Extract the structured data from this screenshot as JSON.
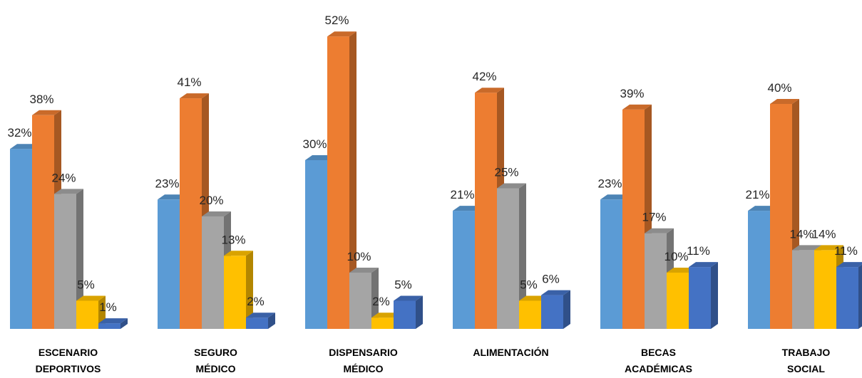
{
  "chart_data": {
    "type": "bar",
    "title": "",
    "xlabel": "",
    "ylabel": "",
    "ylim": [
      0,
      52
    ],
    "grid": false,
    "legend": "none",
    "value_format": "percent",
    "categories": [
      [
        "ESCENARIO",
        "DEPORTIVOS"
      ],
      [
        "SEGURO",
        "MÉDICO"
      ],
      [
        "DISPENSARIO",
        "MÉDICO"
      ],
      [
        "ALIMENTACIÓN"
      ],
      [
        "BECAS",
        "ACADÉMICAS"
      ],
      [
        "TRABAJO",
        "SOCIAL"
      ]
    ],
    "series": [
      {
        "color": "#5B9BD5",
        "values": [
          32,
          23,
          30,
          21,
          23,
          21
        ]
      },
      {
        "color": "#ED7D31",
        "values": [
          38,
          41,
          52,
          42,
          39,
          40
        ]
      },
      {
        "color": "#A5A5A5",
        "values": [
          24,
          20,
          10,
          25,
          17,
          14
        ]
      },
      {
        "color": "#FFC000",
        "values": [
          5,
          13,
          2,
          5,
          10,
          14
        ]
      },
      {
        "color": "#4472C4",
        "values": [
          1,
          2,
          5,
          6,
          11,
          11
        ]
      }
    ]
  }
}
